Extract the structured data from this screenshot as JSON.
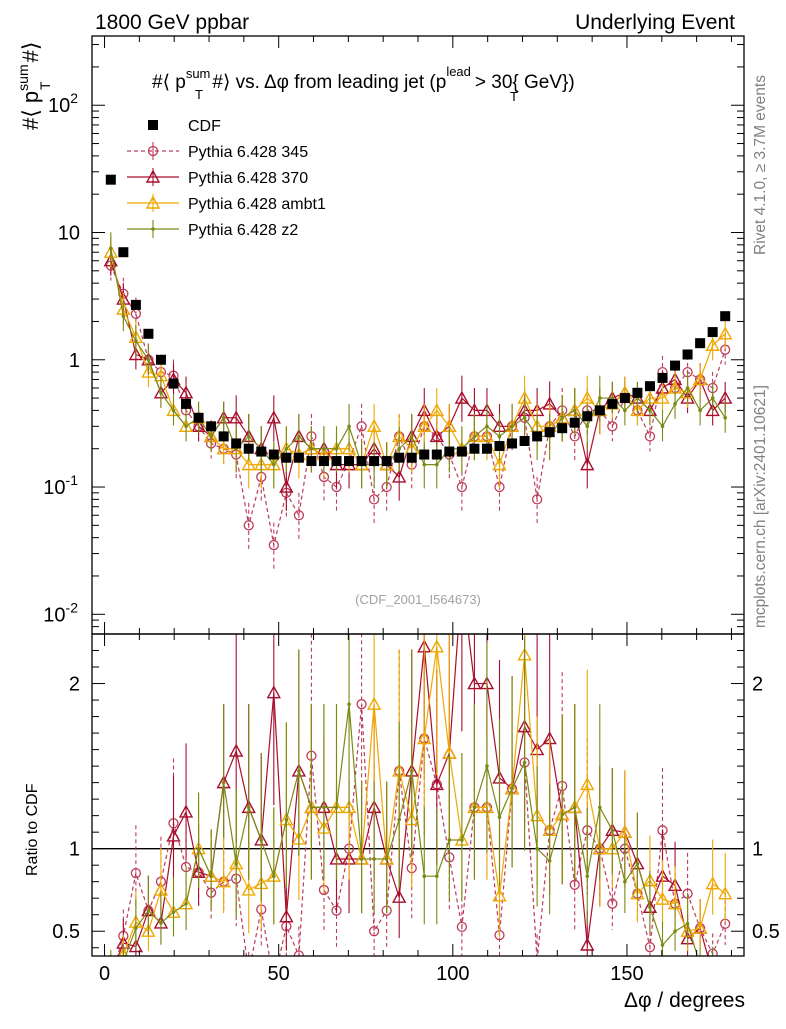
{
  "header": {
    "left": "1800 GeV ppbar",
    "right": "Underlying Event"
  },
  "side_labels": {
    "rivet": "Rivet 4.1.0, ≥ 3.7M events",
    "mcplots": "mcplots.cern.ch [arXiv:2401.10621]"
  },
  "chart_data": {
    "type": "scatter",
    "title": "#⟨ p_T^sum # ⟩ vs. Δφ from leading jet  (p_T^lead > 30{ GeV})",
    "title_parts": {
      "a": "#⟨ p",
      "b": "sum",
      "c": "#⟩ vs.",
      "d": "Δφ from leading jet  (p",
      "e": "lead",
      "f": "> 30{ GeV})",
      "sub": "T"
    },
    "ylabel": "#⟨ p_T^sum # ⟩",
    "ylabel_parts": {
      "a": "#⟨ p",
      "b": "sum",
      "c": "#⟩",
      "sub": "T"
    },
    "xlabel": "Δφ / degrees",
    "watermark": "(CDF_2001_I564673)",
    "ratio_ylabel": "Ratio to CDF",
    "xlim": [
      -3.6,
      183.6
    ],
    "ylim_main": [
      0.007,
      350
    ],
    "ylim_ratio": [
      0.35,
      2.3
    ],
    "yscale_main": "log",
    "legend_position": "top-left",
    "x_ticks": [
      0,
      50,
      100,
      150
    ],
    "y_ticks_main": [
      {
        "base": "10",
        "exp": "-2"
      },
      {
        "base": "10",
        "exp": "-1"
      },
      {
        "base": "1",
        "exp": ""
      },
      {
        "base": "10",
        "exp": ""
      },
      {
        "base": "10",
        "exp": "2"
      }
    ],
    "y_ticks_ratio": [
      "0.5",
      "1",
      "2"
    ],
    "x": [
      1.8,
      5.4,
      9,
      12.6,
      16.2,
      19.8,
      23.4,
      27,
      30.6,
      34.2,
      37.8,
      41.4,
      45,
      48.6,
      52.2,
      55.8,
      59.4,
      63,
      66.6,
      70.2,
      73.8,
      77.4,
      81,
      84.6,
      88.2,
      91.8,
      95.4,
      99,
      102.6,
      106.2,
      109.8,
      113.4,
      117,
      120.6,
      124.2,
      127.8,
      131.4,
      135,
      138.6,
      142.2,
      145.8,
      149.4,
      153,
      156.6,
      160.2,
      163.8,
      167.4,
      171,
      174.6,
      178.2
    ],
    "series": [
      {
        "name": "CDF",
        "color": "#000000",
        "style": "square",
        "values": [
          26,
          7,
          2.7,
          1.6,
          1.0,
          0.65,
          0.45,
          0.35,
          0.3,
          0.25,
          0.22,
          0.2,
          0.19,
          0.18,
          0.17,
          0.17,
          0.16,
          0.16,
          0.16,
          0.16,
          0.16,
          0.16,
          0.16,
          0.17,
          0.17,
          0.18,
          0.18,
          0.19,
          0.19,
          0.2,
          0.2,
          0.21,
          0.22,
          0.23,
          0.25,
          0.27,
          0.29,
          0.32,
          0.36,
          0.4,
          0.45,
          0.5,
          0.55,
          0.62,
          0.72,
          0.9,
          1.1,
          1.35,
          1.65,
          2.2
        ]
      },
      {
        "name": "Pythia 6.428 345",
        "color": "#bc3c5c",
        "style": "circle-dashed",
        "values": [
          5.5,
          3.3,
          2.3,
          1.0,
          0.8,
          0.75,
          0.4,
          0.3,
          0.22,
          0.2,
          0.18,
          0.05,
          0.12,
          0.035,
          0.09,
          0.06,
          0.25,
          0.12,
          0.1,
          0.16,
          0.3,
          0.08,
          0.1,
          0.25,
          0.15,
          0.3,
          0.25,
          0.18,
          0.1,
          0.25,
          0.25,
          0.1,
          0.3,
          0.35,
          0.08,
          0.3,
          0.4,
          0.25,
          0.4,
          0.4,
          0.3,
          0.5,
          0.4,
          0.25,
          0.8,
          0.6,
          0.8,
          0.7,
          0.6,
          1.2
        ]
      },
      {
        "name": "Pythia 6.428 370",
        "color": "#a80e2c",
        "style": "triangle-solid",
        "values": [
          6.0,
          3.0,
          1.1,
          1.0,
          0.55,
          0.7,
          0.55,
          0.3,
          0.25,
          0.35,
          0.35,
          0.25,
          0.2,
          0.35,
          0.1,
          0.25,
          0.2,
          0.2,
          0.15,
          0.15,
          0.15,
          0.2,
          0.15,
          0.12,
          0.25,
          0.4,
          0.25,
          0.3,
          0.5,
          0.4,
          0.4,
          0.3,
          0.3,
          0.4,
          0.4,
          0.45,
          0.35,
          0.4,
          0.15,
          0.4,
          0.5,
          0.55,
          0.5,
          0.4,
          0.6,
          0.7,
          0.5,
          0.7,
          0.4,
          0.5
        ]
      },
      {
        "name": "Pythia 6.428 ambt1",
        "color": "#f0a800",
        "style": "triangle-solid",
        "values": [
          7.0,
          2.5,
          1.5,
          0.8,
          0.75,
          0.4,
          0.3,
          0.35,
          0.25,
          0.2,
          0.2,
          0.15,
          0.15,
          0.15,
          0.2,
          0.18,
          0.2,
          0.18,
          0.2,
          0.2,
          0.15,
          0.3,
          0.15,
          0.25,
          0.2,
          0.3,
          0.4,
          0.3,
          0.2,
          0.25,
          0.25,
          0.15,
          0.3,
          0.5,
          0.3,
          0.3,
          0.35,
          0.4,
          0.5,
          0.4,
          0.45,
          0.55,
          0.4,
          0.5,
          0.5,
          0.6,
          0.55,
          0.7,
          1.3,
          1.6
        ]
      },
      {
        "name": "Pythia 6.428 z2",
        "color": "#7a8a14",
        "style": "dot-solid",
        "values": [
          7.5,
          2.2,
          1.4,
          1.0,
          0.55,
          0.4,
          0.3,
          0.35,
          0.25,
          0.35,
          0.2,
          0.25,
          0.2,
          0.15,
          0.2,
          0.25,
          0.2,
          0.2,
          0.2,
          0.3,
          0.15,
          0.15,
          0.15,
          0.2,
          0.25,
          0.15,
          0.15,
          0.2,
          0.2,
          0.25,
          0.3,
          0.25,
          0.3,
          0.35,
          0.25,
          0.25,
          0.35,
          0.4,
          0.3,
          0.5,
          0.5,
          0.4,
          0.5,
          0.4,
          0.3,
          0.45,
          0.6,
          0.4,
          0.5,
          0.35
        ]
      }
    ]
  }
}
